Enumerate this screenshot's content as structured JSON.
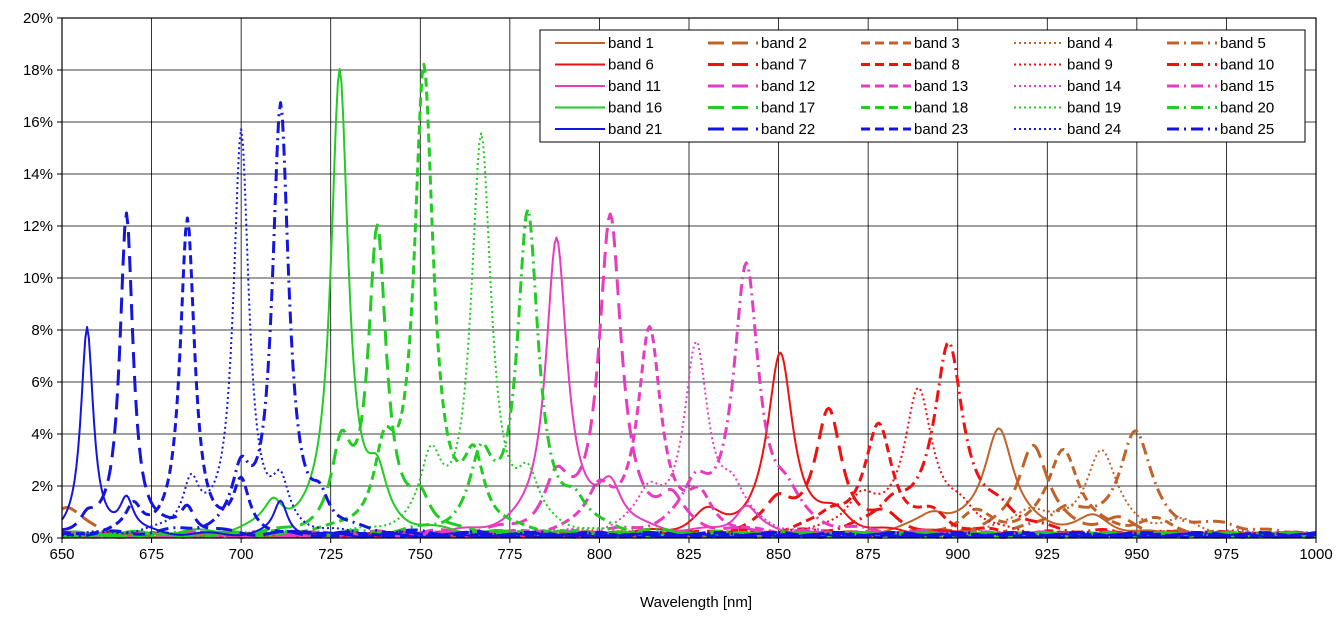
{
  "chart_data": {
    "type": "line",
    "title": "",
    "xlabel": "Wavelength [nm]",
    "ylabel": "",
    "xlim": [
      650,
      1000
    ],
    "ylim": [
      0,
      20
    ],
    "x_ticks": [
      650,
      675,
      700,
      725,
      750,
      775,
      800,
      825,
      850,
      875,
      900,
      925,
      950,
      975,
      1000
    ],
    "y_ticks": [
      0,
      2,
      4,
      6,
      8,
      10,
      12,
      14,
      16,
      18,
      20
    ],
    "y_tick_labels": [
      "0%",
      "2%",
      "4%",
      "6%",
      "8%",
      "10%",
      "12%",
      "14%",
      "16%",
      "18%",
      "20%"
    ],
    "grid": true,
    "legend_position": "top-right",
    "legend_columns": 5,
    "colors": {
      "orange": "#c0622a",
      "red": "#ee1111",
      "magenta": "#e83cc0",
      "green": "#22cc22",
      "blue": "#1515e0"
    },
    "series": [
      {
        "name": "band 1",
        "color": "orange",
        "dash": "solid",
        "peak_x": 911.5,
        "peak_y": 4.1,
        "secondary": [
          [
            893,
            0.7
          ],
          [
            938,
            0.6
          ]
        ]
      },
      {
        "name": "band 2",
        "color": "orange",
        "dash": "longdash",
        "peak_x": 921,
        "peak_y": 3.5,
        "secondary": [
          [
            651,
            1.1
          ],
          [
            945,
            0.5
          ]
        ]
      },
      {
        "name": "band 3",
        "color": "orange",
        "dash": "dash",
        "peak_x": 929.5,
        "peak_y": 3.3,
        "secondary": [
          [
            905,
            0.8
          ],
          [
            955,
            0.5
          ]
        ]
      },
      {
        "name": "band 4",
        "color": "orange",
        "dash": "dot",
        "peak_x": 940,
        "peak_y": 3.2,
        "secondary": [
          [
            920,
            0.9
          ],
          [
            963,
            0.4
          ]
        ]
      },
      {
        "name": "band 5",
        "color": "orange",
        "dash": "dashdot",
        "peak_x": 949.5,
        "peak_y": 3.9,
        "secondary": [
          [
            930,
            0.9
          ],
          [
            975,
            0.3
          ]
        ]
      },
      {
        "name": "band 6",
        "color": "red",
        "dash": "solid",
        "peak_x": 850.5,
        "peak_y": 6.9,
        "secondary": [
          [
            830,
            0.7
          ],
          [
            866,
            0.6
          ]
        ]
      },
      {
        "name": "band 7",
        "color": "red",
        "dash": "longdash",
        "peak_x": 864,
        "peak_y": 4.7,
        "secondary": [
          [
            850,
            1.2
          ],
          [
            880,
            0.6
          ]
        ]
      },
      {
        "name": "band 8",
        "color": "red",
        "dash": "dash",
        "peak_x": 878,
        "peak_y": 4.1,
        "secondary": [
          [
            865,
            0.7
          ],
          [
            893,
            0.6
          ]
        ]
      },
      {
        "name": "band 9",
        "color": "red",
        "dash": "dot",
        "peak_x": 889,
        "peak_y": 5.5,
        "secondary": [
          [
            873,
            1.3
          ],
          [
            901,
            0.8
          ]
        ]
      },
      {
        "name": "band 10",
        "color": "red",
        "dash": "dashdot",
        "peak_x": 897.5,
        "peak_y": 7.3,
        "secondary": [
          [
            882,
            1.0
          ],
          [
            912,
            0.7
          ]
        ]
      },
      {
        "name": "band 11",
        "color": "magenta",
        "dash": "solid",
        "peak_x": 788,
        "peak_y": 11.4,
        "secondary": [
          [
            803,
            1.7
          ],
          [
            841,
            1.1
          ]
        ]
      },
      {
        "name": "band 12",
        "color": "magenta",
        "dash": "longdash",
        "peak_x": 803,
        "peak_y": 12.1,
        "secondary": [
          [
            788,
            1.8
          ],
          [
            820,
            1.1
          ]
        ]
      },
      {
        "name": "band 13",
        "color": "magenta",
        "dash": "dash",
        "peak_x": 814,
        "peak_y": 7.8,
        "secondary": [
          [
            800,
            1.6
          ],
          [
            828,
            1.2
          ]
        ]
      },
      {
        "name": "band 14",
        "color": "magenta",
        "dash": "dot",
        "peak_x": 827,
        "peak_y": 7.0,
        "secondary": [
          [
            814,
            1.4
          ],
          [
            837,
            1.4
          ]
        ]
      },
      {
        "name": "band 15",
        "color": "magenta",
        "dash": "dashdot",
        "peak_x": 841,
        "peak_y": 10.1,
        "secondary": [
          [
            827,
            1.6
          ],
          [
            852,
            1.0
          ]
        ]
      },
      {
        "name": "band 16",
        "color": "green",
        "dash": "solid",
        "peak_x": 727.5,
        "peak_y": 17.8,
        "secondary": [
          [
            738,
            1.7
          ],
          [
            709,
            1.0
          ]
        ]
      },
      {
        "name": "band 17",
        "color": "green",
        "dash": "longdash",
        "peak_x": 738,
        "peak_y": 11.6,
        "secondary": [
          [
            728,
            3.0
          ],
          [
            750,
            1.2
          ]
        ]
      },
      {
        "name": "band 18",
        "color": "green",
        "dash": "dash",
        "peak_x": 751,
        "peak_y": 17.8,
        "secondary": [
          [
            740,
            2.7
          ],
          [
            765,
            2.6
          ]
        ]
      },
      {
        "name": "band 19",
        "color": "green",
        "dash": "dot",
        "peak_x": 767,
        "peak_y": 15.1,
        "secondary": [
          [
            753,
            2.6
          ],
          [
            780,
            1.8
          ]
        ]
      },
      {
        "name": "band 20",
        "color": "green",
        "dash": "dashdot",
        "peak_x": 780,
        "peak_y": 12.2,
        "secondary": [
          [
            767,
            2.6
          ],
          [
            793,
            1.0
          ]
        ]
      },
      {
        "name": "band 21",
        "color": "blue",
        "dash": "solid",
        "peak_x": 657,
        "peak_y": 7.9,
        "secondary": [
          [
            668,
            1.3
          ],
          [
            711,
            1.3
          ]
        ]
      },
      {
        "name": "band 22",
        "color": "blue",
        "dash": "longdash",
        "peak_x": 668,
        "peak_y": 12.4,
        "secondary": [
          [
            657,
            0.5
          ],
          [
            685,
            1.0
          ]
        ]
      },
      {
        "name": "band 23",
        "color": "blue",
        "dash": "dash",
        "peak_x": 685,
        "peak_y": 12.1,
        "secondary": [
          [
            670,
            1.0
          ],
          [
            700,
            1.9
          ]
        ]
      },
      {
        "name": "band 24",
        "color": "blue",
        "dash": "dot",
        "peak_x": 700,
        "peak_y": 15.5,
        "secondary": [
          [
            686,
            1.9
          ],
          [
            711,
            1.6
          ]
        ]
      },
      {
        "name": "band 25",
        "color": "blue",
        "dash": "dashdot",
        "peak_x": 711,
        "peak_y": 16.4,
        "secondary": [
          [
            700,
            2.0
          ],
          [
            722,
            1.1
          ]
        ]
      }
    ]
  }
}
